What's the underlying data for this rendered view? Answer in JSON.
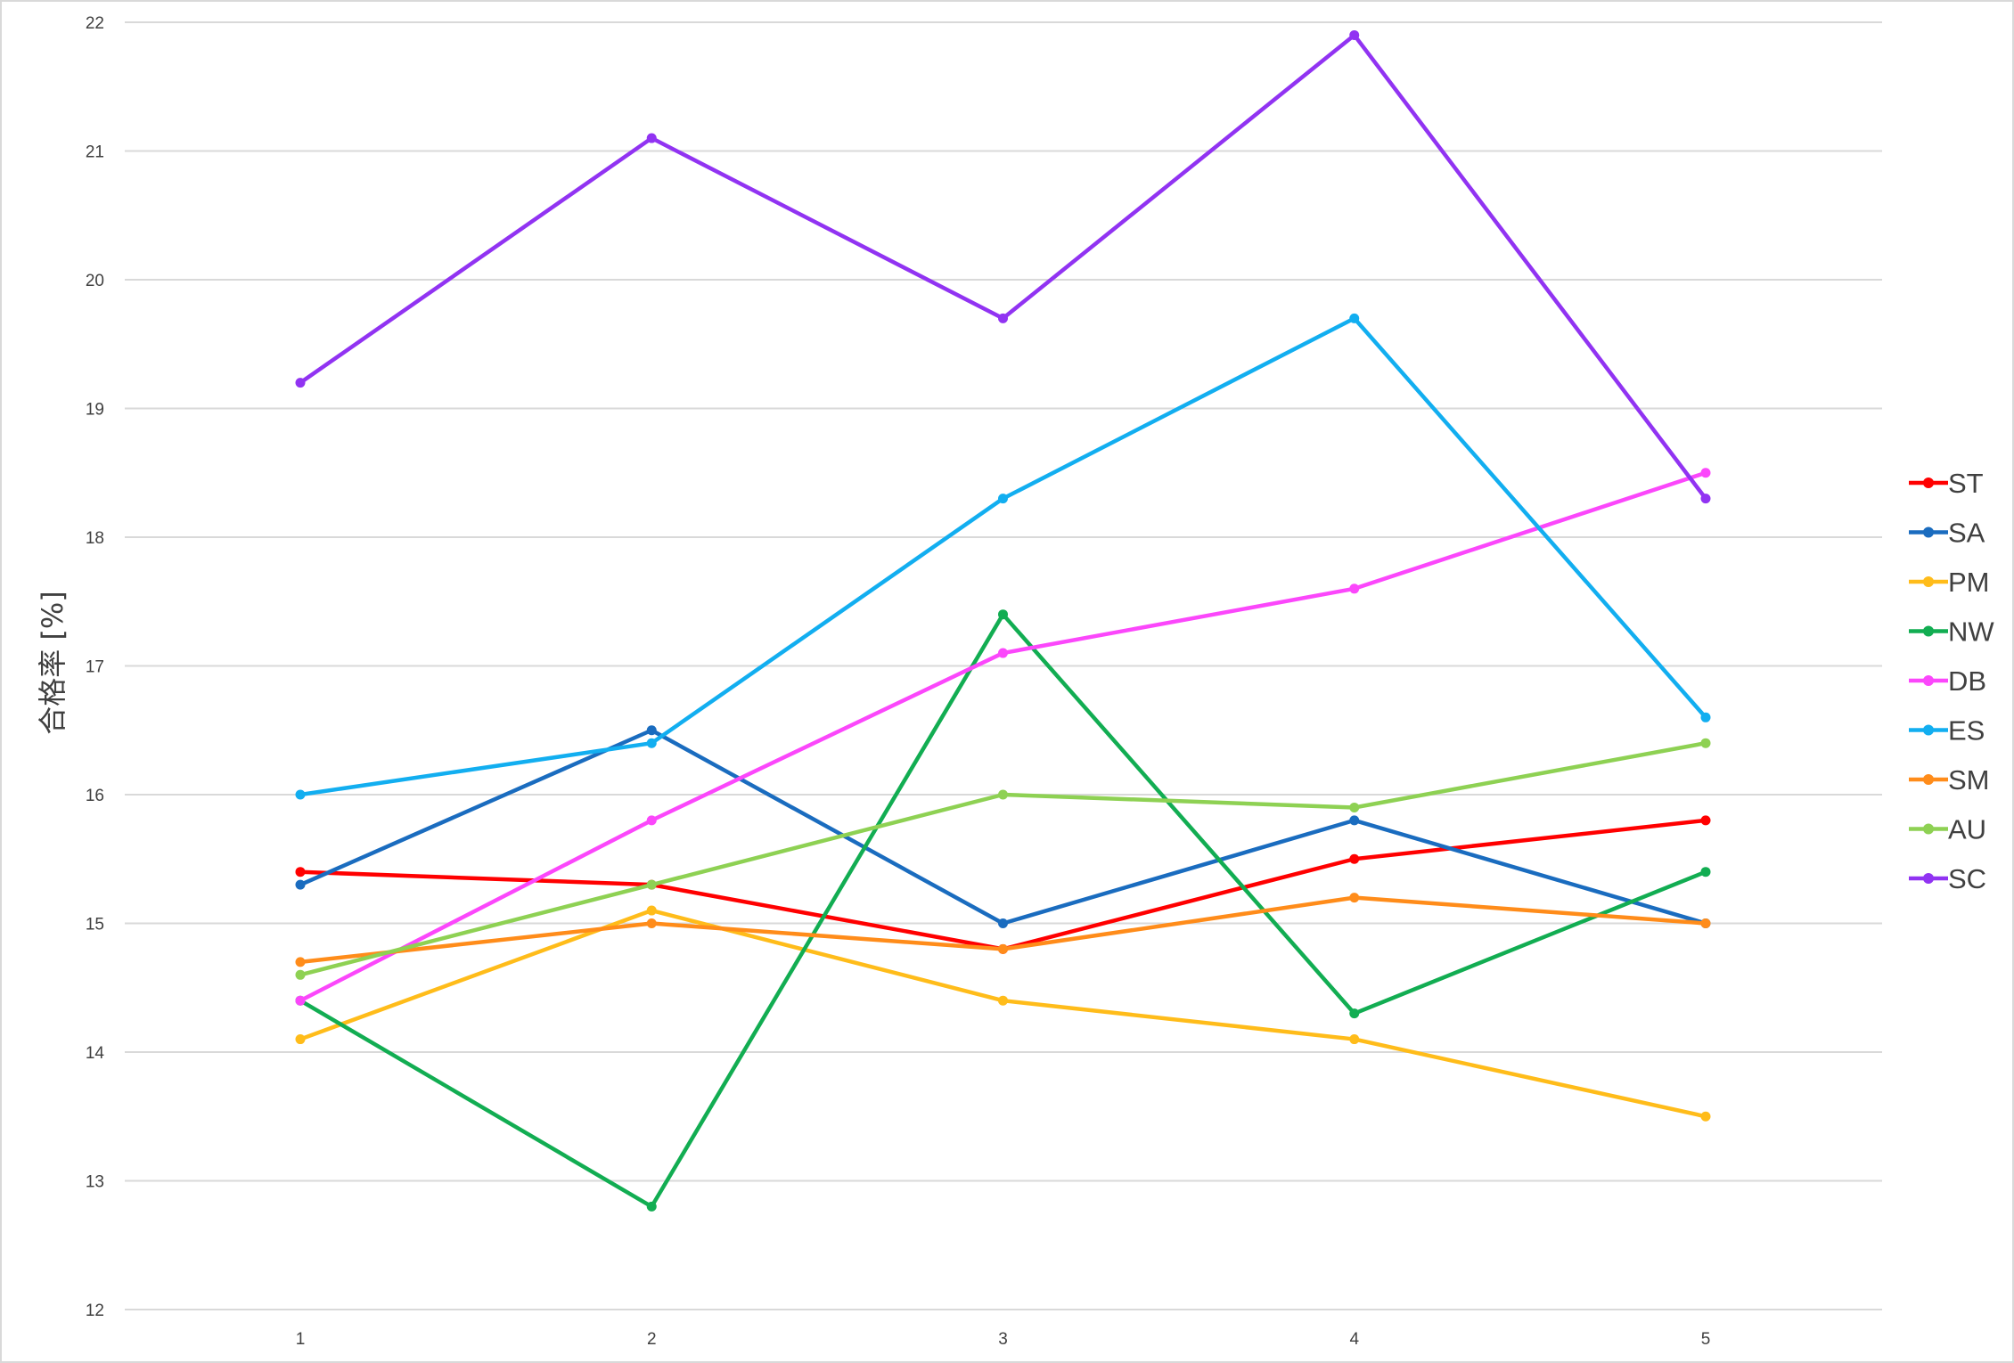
{
  "chart_data": {
    "type": "line",
    "title": "",
    "xlabel": "",
    "ylabel": "合格率 [%]",
    "x": [
      1,
      2,
      3,
      4,
      5
    ],
    "ylim": [
      12,
      22
    ],
    "yticks": [
      12,
      13,
      14,
      15,
      16,
      17,
      18,
      19,
      20,
      21,
      22
    ],
    "grid": true,
    "legend_position": "right",
    "series": [
      {
        "name": "ST",
        "color": "#ff0000",
        "values": [
          15.4,
          15.3,
          14.8,
          15.5,
          15.8
        ]
      },
      {
        "name": "SA",
        "color": "#1a6cbf",
        "values": [
          15.3,
          16.5,
          15.0,
          15.8,
          15.0
        ]
      },
      {
        "name": "PM",
        "color": "#ffbc1a",
        "values": [
          14.1,
          15.1,
          14.4,
          14.1,
          13.5
        ]
      },
      {
        "name": "NW",
        "color": "#12ad52",
        "values": [
          14.4,
          12.8,
          17.4,
          14.3,
          15.4
        ]
      },
      {
        "name": "DB",
        "color": "#fb47fb",
        "values": [
          14.4,
          15.8,
          17.1,
          17.6,
          18.5
        ]
      },
      {
        "name": "ES",
        "color": "#12aef0",
        "values": [
          16.0,
          16.4,
          18.3,
          19.7,
          16.6
        ]
      },
      {
        "name": "SM",
        "color": "#ff8c1a",
        "values": [
          14.7,
          15.0,
          14.8,
          15.2,
          15.0
        ]
      },
      {
        "name": "AU",
        "color": "#8ed153",
        "values": [
          14.6,
          15.3,
          16.0,
          15.9,
          16.4
        ]
      },
      {
        "name": "SC",
        "color": "#9133f2",
        "values": [
          19.2,
          21.1,
          19.7,
          21.9,
          18.3
        ]
      }
    ]
  }
}
